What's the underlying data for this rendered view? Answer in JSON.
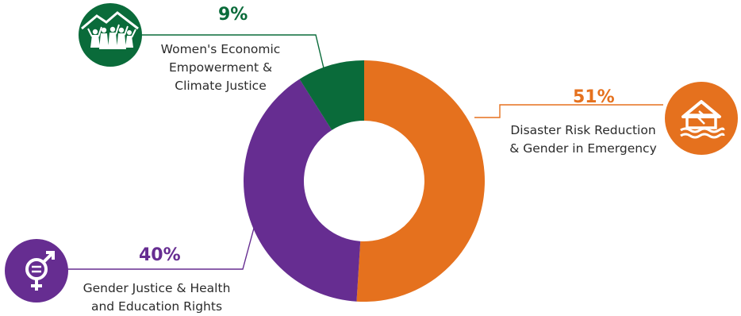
{
  "chart_data": {
    "type": "pie",
    "donut": true,
    "slices": [
      {
        "label_lines": [
          "Disaster Risk Reduction",
          "& Gender in Emergency"
        ],
        "value": 51,
        "value_label": "51%",
        "color": "#E5711E",
        "icon": "flooded-house-icon"
      },
      {
        "label_lines": [
          "Gender Justice & Health",
          "and Education Rights"
        ],
        "value": 40,
        "value_label": "40%",
        "color": "#662D91",
        "icon": "gender-equality-icon"
      },
      {
        "label_lines": [
          "Women's Economic",
          "Empowerment &",
          "Climate Justice"
        ],
        "value": 9,
        "value_label": "9%",
        "color": "#0A6B3A",
        "icon": "women-group-mountain-icon"
      }
    ]
  }
}
